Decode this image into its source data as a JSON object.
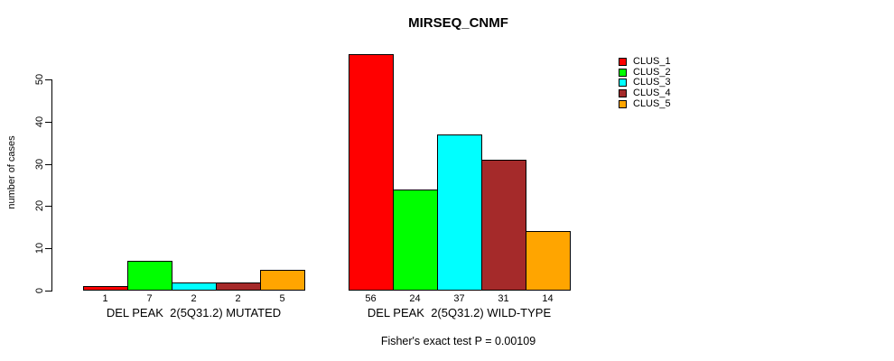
{
  "chart_data": {
    "type": "bar",
    "title": "MIRSEQ_CNMF",
    "ylabel": "number of cases",
    "ylim": [
      0,
      56
    ],
    "yticks": [
      0,
      10,
      20,
      30,
      40,
      50
    ],
    "grid": false,
    "legend_position": "right",
    "categories": [
      "DEL PEAK  2(5Q31.2) MUTATED",
      "DEL PEAK  2(5Q31.2) WILD-TYPE"
    ],
    "series": [
      {
        "name": "CLUS_1",
        "color": "#FF0000",
        "values": [
          1,
          56
        ]
      },
      {
        "name": "CLUS_2",
        "color": "#00FF00",
        "values": [
          7,
          24
        ]
      },
      {
        "name": "CLUS_3",
        "color": "#00FFFF",
        "values": [
          2,
          37
        ]
      },
      {
        "name": "CLUS_4",
        "color": "#A52A2A",
        "values": [
          2,
          31
        ]
      },
      {
        "name": "CLUS_5",
        "color": "#FFA500",
        "values": [
          5,
          14
        ]
      }
    ],
    "bar_value_labels": [
      [
        "1",
        "7",
        "2",
        "2",
        "5"
      ],
      [
        "56",
        "24",
        "37",
        "31",
        "14"
      ]
    ],
    "footnote": "Fisher's exact test P = 0.00109"
  }
}
